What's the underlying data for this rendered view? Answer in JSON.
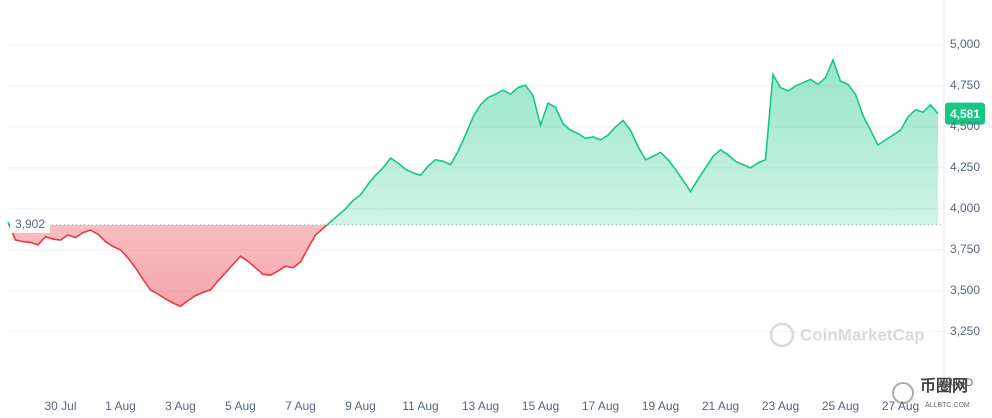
{
  "chart_data": {
    "type": "line",
    "categories": [
      null,
      null,
      null,
      null,
      null,
      null,
      null,
      "30 Jul",
      null,
      null,
      null,
      null,
      null,
      null,
      null,
      "1 Aug",
      null,
      null,
      null,
      null,
      null,
      null,
      null,
      "3 Aug",
      null,
      null,
      null,
      null,
      null,
      null,
      null,
      "5 Aug",
      null,
      null,
      null,
      null,
      null,
      null,
      null,
      "7 Aug",
      null,
      null,
      null,
      null,
      null,
      null,
      null,
      "9 Aug",
      null,
      null,
      null,
      null,
      null,
      null,
      null,
      "11 Aug",
      null,
      null,
      null,
      null,
      null,
      null,
      null,
      "13 Aug",
      null,
      null,
      null,
      null,
      null,
      null,
      null,
      "15 Aug",
      null,
      null,
      null,
      null,
      null,
      null,
      null,
      "17 Aug",
      null,
      null,
      null,
      null,
      null,
      null,
      null,
      "19 Aug",
      null,
      null,
      null,
      null,
      null,
      null,
      null,
      "21 Aug",
      null,
      null,
      null,
      null,
      null,
      null,
      null,
      "23 Aug",
      null,
      null,
      null,
      null,
      null,
      null,
      null,
      "25 Aug",
      null,
      null,
      null,
      null,
      null,
      null,
      null,
      "27 Aug",
      null,
      null,
      null,
      null,
      null
    ],
    "values": [
      3920,
      3810,
      3800,
      3795,
      3780,
      3830,
      3815,
      3810,
      3840,
      3825,
      3855,
      3870,
      3845,
      3800,
      3770,
      3750,
      3700,
      3640,
      3570,
      3505,
      3480,
      3450,
      3425,
      3405,
      3440,
      3470,
      3490,
      3505,
      3560,
      3610,
      3660,
      3710,
      3680,
      3640,
      3600,
      3595,
      3620,
      3650,
      3640,
      3675,
      3760,
      3840,
      3880,
      3920,
      3960,
      4000,
      4050,
      4085,
      4150,
      4205,
      4250,
      4310,
      4280,
      4240,
      4220,
      4205,
      4260,
      4300,
      4290,
      4270,
      4350,
      4450,
      4560,
      4635,
      4680,
      4700,
      4725,
      4700,
      4740,
      4755,
      4690,
      4510,
      4645,
      4620,
      4520,
      4480,
      4460,
      4430,
      4440,
      4420,
      4450,
      4500,
      4540,
      4480,
      4380,
      4300,
      4320,
      4345,
      4300,
      4240,
      4175,
      4105,
      4180,
      4250,
      4320,
      4360,
      4330,
      4290,
      4270,
      4250,
      4280,
      4300,
      4820,
      4740,
      4720,
      4750,
      4770,
      4790,
      4760,
      4800,
      4910,
      4780,
      4760,
      4700,
      4570,
      4480,
      4390,
      4420,
      4450,
      4480,
      4560,
      4605,
      4590,
      4635,
      4581
    ],
    "up_color": "#16c784",
    "down_color": "#ea3943",
    "baseline": {
      "value": 3902,
      "label": "3,902"
    },
    "last_price": {
      "value": 4581,
      "label": "4,581"
    },
    "ylim": [
      2900,
      5275
    ],
    "yticks": [
      {
        "value": 3250,
        "label": "3,250"
      },
      {
        "value": 3500,
        "label": "3,500"
      },
      {
        "value": 3750,
        "label": "3,750"
      },
      {
        "value": 4000,
        "label": "4,000"
      },
      {
        "value": 4250,
        "label": "4,250"
      },
      {
        "value": 4500,
        "label": "4,500"
      },
      {
        "value": 4750,
        "label": "4,750"
      },
      {
        "value": 5000,
        "label": "5,000"
      }
    ],
    "y_unit": "USD",
    "grid": true,
    "watermark": "CoinMarketCap"
  },
  "site_watermark": {
    "name": "币圈网",
    "url": "ALLBTC.COM"
  }
}
